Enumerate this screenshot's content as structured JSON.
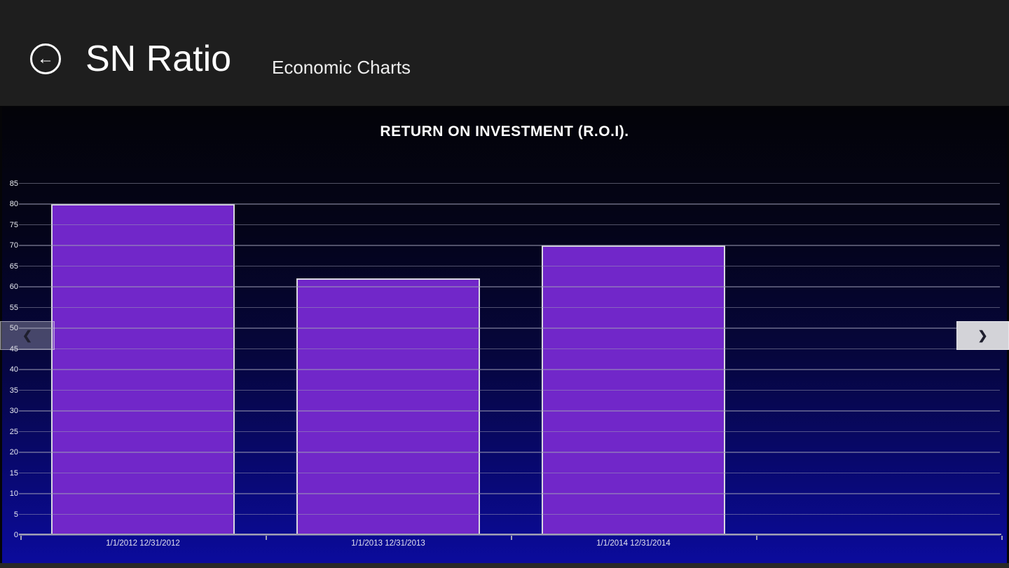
{
  "header": {
    "back_glyph": "←",
    "title": "SN Ratio",
    "subtitle": "Economic Charts"
  },
  "chart_data": {
    "type": "bar",
    "title": "RETURN ON INVESTMENT (R.O.I).",
    "categories": [
      "1/1/2012 12/31/2012",
      "1/1/2013 12/31/2013",
      "1/1/2014 12/31/2014"
    ],
    "values": [
      80,
      62,
      70
    ],
    "xlabel": "",
    "ylabel": "",
    "ylim": [
      0,
      85
    ],
    "ytick_step": 5,
    "grid": "horizontal",
    "legend": "none",
    "bar_color": "#7127c9",
    "bar_border_color": "#d8d8e0",
    "background": "gradient black to navy blue"
  },
  "nav": {
    "left_chevron": "❮",
    "right_chevron": "❯"
  }
}
